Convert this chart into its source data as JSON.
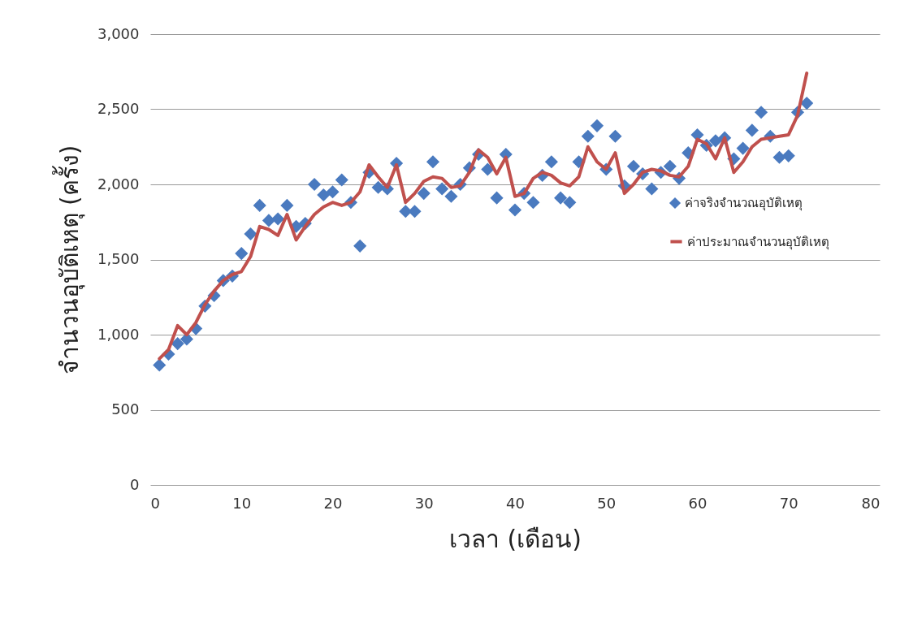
{
  "chart_data": {
    "type": "scatter",
    "xlabel": "เวลา (เดือน)",
    "ylabel": "จำนวนอุบัติเหตุ (ครั้ง)",
    "x": [
      1,
      2,
      3,
      4,
      5,
      6,
      7,
      8,
      9,
      10,
      11,
      12,
      13,
      14,
      15,
      16,
      17,
      18,
      19,
      20,
      21,
      22,
      23,
      24,
      25,
      26,
      27,
      28,
      29,
      30,
      31,
      32,
      33,
      34,
      35,
      36,
      37,
      38,
      39,
      40,
      41,
      42,
      43,
      44,
      45,
      46,
      47,
      48,
      49,
      50,
      51,
      52,
      53,
      54,
      55,
      56,
      57,
      58,
      59,
      60,
      61,
      62,
      63,
      64,
      65,
      66,
      67,
      68,
      69,
      70,
      71,
      72
    ],
    "series": [
      {
        "name": "ค่าจริงจำนวณอุบัติเหตุ",
        "marker": "diamond",
        "color": "#4a7abf",
        "values": [
          797,
          870,
          940,
          970,
          1040,
          1190,
          1260,
          1360,
          1390,
          1540,
          1670,
          1860,
          1760,
          1770,
          1860,
          1720,
          1740,
          2000,
          1930,
          1950,
          2030,
          1880,
          1590,
          2080,
          1980,
          1970,
          2140,
          1820,
          1820,
          1940,
          2150,
          1970,
          1920,
          2000,
          2110,
          2200,
          2100,
          1910,
          2200,
          1830,
          1940,
          1880,
          2060,
          2150,
          1910,
          1880,
          2150,
          2320,
          2390,
          2100,
          2320,
          1990,
          2120,
          2070,
          1970,
          2080,
          2120,
          2040,
          2210,
          2330,
          2260,
          2290,
          2310,
          2170,
          2240,
          2360,
          2480,
          2320,
          2180,
          2190,
          2480,
          2540
        ]
      },
      {
        "name": "ค่าประมาณจำนวนอุบัติเหตุ",
        "type": "line",
        "line_style": "solid",
        "color": "#c0504d",
        "values": [
          840,
          900,
          1060,
          1000,
          1080,
          1200,
          1290,
          1360,
          1400,
          1420,
          1520,
          1720,
          1700,
          1660,
          1800,
          1630,
          1720,
          1800,
          1850,
          1880,
          1860,
          1880,
          1950,
          2130,
          2050,
          1980,
          2130,
          1880,
          1940,
          2020,
          2050,
          2040,
          1980,
          1990,
          2080,
          2230,
          2180,
          2070,
          2180,
          1920,
          1940,
          2040,
          2080,
          2060,
          2010,
          1990,
          2050,
          2250,
          2150,
          2100,
          2210,
          1940,
          2000,
          2080,
          2100,
          2090,
          2060,
          2050,
          2120,
          2300,
          2270,
          2170,
          2310,
          2080,
          2150,
          2250,
          2300,
          2310,
          2320,
          2330,
          2460,
          2740
        ]
      }
    ],
    "xlim": [
      0,
      80
    ],
    "xticks": [
      0,
      10,
      20,
      30,
      40,
      50,
      60,
      70,
      80
    ],
    "ylim": [
      0,
      3000
    ],
    "yticks": [
      0,
      500,
      {
        "value": 1000,
        "label": "1,000"
      },
      {
        "value": 1500,
        "label": "1,500"
      },
      {
        "value": 2000,
        "label": "2,000"
      },
      {
        "value": 2500,
        "label": "2,500"
      },
      {
        "value": 3000,
        "label": "3,000"
      }
    ],
    "grid": "y",
    "legend": "right"
  }
}
